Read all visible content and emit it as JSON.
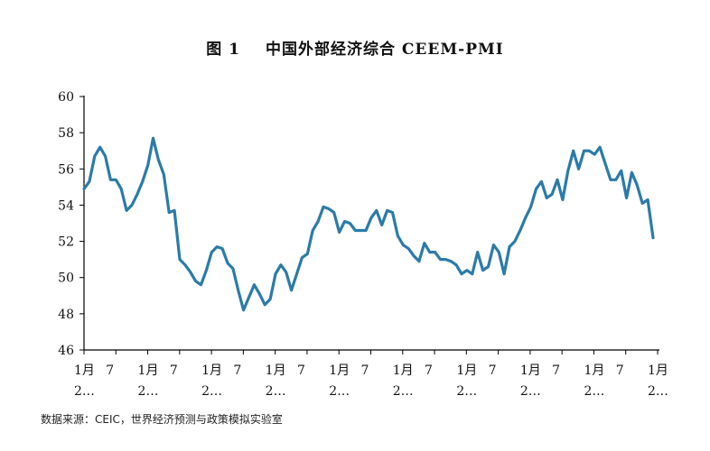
{
  "chart_data": {
    "type": "line",
    "title_prefix": "图 1",
    "title": "中国外部经济综合 CEEM-PMI",
    "xlabel": "",
    "ylabel": "",
    "ylim": [
      46,
      60
    ],
    "yticks": [
      "46",
      "48",
      "50",
      "52",
      "54",
      "56",
      "58",
      "60"
    ],
    "xtick_labels": [
      {
        "line1": "1月",
        "line2": "2…"
      },
      {
        "line1": "7",
        "line2": ""
      },
      {
        "line1": "1月",
        "line2": "2…"
      },
      {
        "line1": "7",
        "line2": ""
      },
      {
        "line1": "1月",
        "line2": "2…"
      },
      {
        "line1": "7",
        "line2": ""
      },
      {
        "line1": "1月",
        "line2": "2…"
      },
      {
        "line1": "7",
        "line2": ""
      },
      {
        "line1": "1月",
        "line2": "2…"
      },
      {
        "line1": "7",
        "line2": ""
      },
      {
        "line1": "1月",
        "line2": "2…"
      },
      {
        "line1": "7",
        "line2": ""
      },
      {
        "line1": "1月",
        "line2": "2…"
      },
      {
        "line1": "7",
        "line2": ""
      },
      {
        "line1": "1月",
        "line2": "2…"
      },
      {
        "line1": "7",
        "line2": ""
      },
      {
        "line1": "1月",
        "line2": "2…"
      },
      {
        "line1": "7",
        "line2": ""
      },
      {
        "line1": "1月",
        "line2": "2…"
      }
    ],
    "grid": false,
    "line_color": "#2b7ba8",
    "series": [
      {
        "values": [
          54.9,
          55.3,
          56.7,
          57.2,
          56.7,
          55.4,
          55.4,
          54.9,
          53.7,
          54.0,
          54.6,
          55.3,
          56.2,
          57.7,
          56.5,
          55.7,
          53.6,
          53.7,
          51.0,
          50.7,
          50.3,
          49.8,
          49.6,
          50.4,
          51.4,
          51.7,
          51.6,
          50.8,
          50.5,
          49.3,
          48.2,
          48.9,
          49.6,
          49.1,
          48.5,
          48.8,
          50.2,
          50.7,
          50.3,
          49.3,
          50.2,
          51.1,
          51.3,
          52.6,
          53.1,
          53.9,
          53.8,
          53.6,
          52.5,
          53.1,
          53.0,
          52.6,
          52.6,
          52.6,
          53.3,
          53.7,
          52.9,
          53.7,
          53.6,
          52.3,
          51.8,
          51.6,
          51.2,
          50.9,
          51.9,
          51.4,
          51.4,
          51.0,
          51.0,
          50.9,
          50.7,
          50.2,
          50.4,
          50.2,
          51.4,
          50.4,
          50.6,
          51.8,
          51.4,
          50.2,
          51.7,
          52.0,
          52.6,
          53.3,
          53.9,
          54.9,
          55.3,
          54.4,
          54.6,
          55.4,
          54.3,
          55.9,
          57.0,
          56.0,
          57.0,
          57.0,
          56.8,
          57.2,
          56.3,
          55.4,
          55.4,
          55.9,
          54.4,
          55.8,
          55.1,
          54.1,
          54.3,
          52.2
        ]
      }
    ]
  },
  "source_note": "数据来源：CEIC，世界经济预测与政策模拟实验室"
}
